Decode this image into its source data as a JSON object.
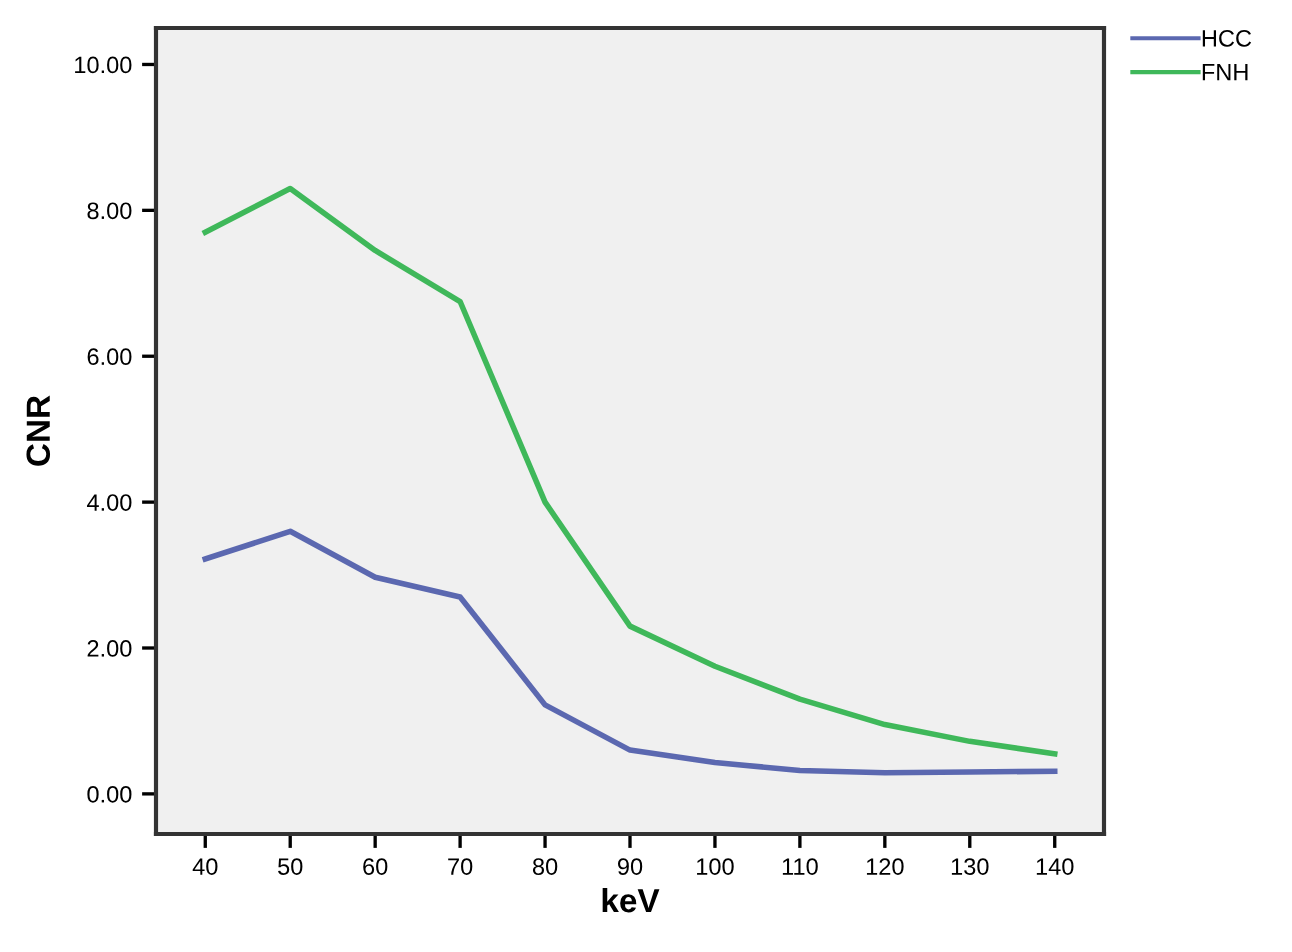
{
  "chart_data": {
    "type": "line",
    "xlabel": "keV",
    "ylabel": "CNR",
    "x": [
      40,
      50,
      60,
      70,
      80,
      90,
      100,
      110,
      120,
      130,
      140
    ],
    "series": [
      {
        "name": "HCC",
        "color": "#5b68b0",
        "values": [
          3.22,
          3.6,
          2.97,
          2.7,
          1.22,
          0.6,
          0.43,
          0.32,
          0.29,
          0.3,
          0.31
        ]
      },
      {
        "name": "FNH",
        "color": "#3fb85a",
        "values": [
          7.7,
          8.3,
          7.45,
          6.75,
          4.0,
          2.3,
          1.75,
          1.3,
          0.95,
          0.72,
          0.55
        ]
      }
    ],
    "xlim": [
      34.2,
      145.8
    ],
    "xticks": [
      40,
      50,
      60,
      70,
      80,
      90,
      100,
      110,
      120,
      130,
      140
    ],
    "ylim": [
      -0.55,
      10.5
    ],
    "yticks": [
      {
        "value": 0,
        "label": "0.00"
      },
      {
        "value": 2,
        "label": "2.00"
      },
      {
        "value": 4,
        "label": "4.00"
      },
      {
        "value": 6,
        "label": "6.00"
      },
      {
        "value": 8,
        "label": "8.00"
      },
      {
        "value": 10,
        "label": "10.00"
      }
    ],
    "grid": false,
    "legend": "top right",
    "marker": "none",
    "line_style": "solid"
  }
}
